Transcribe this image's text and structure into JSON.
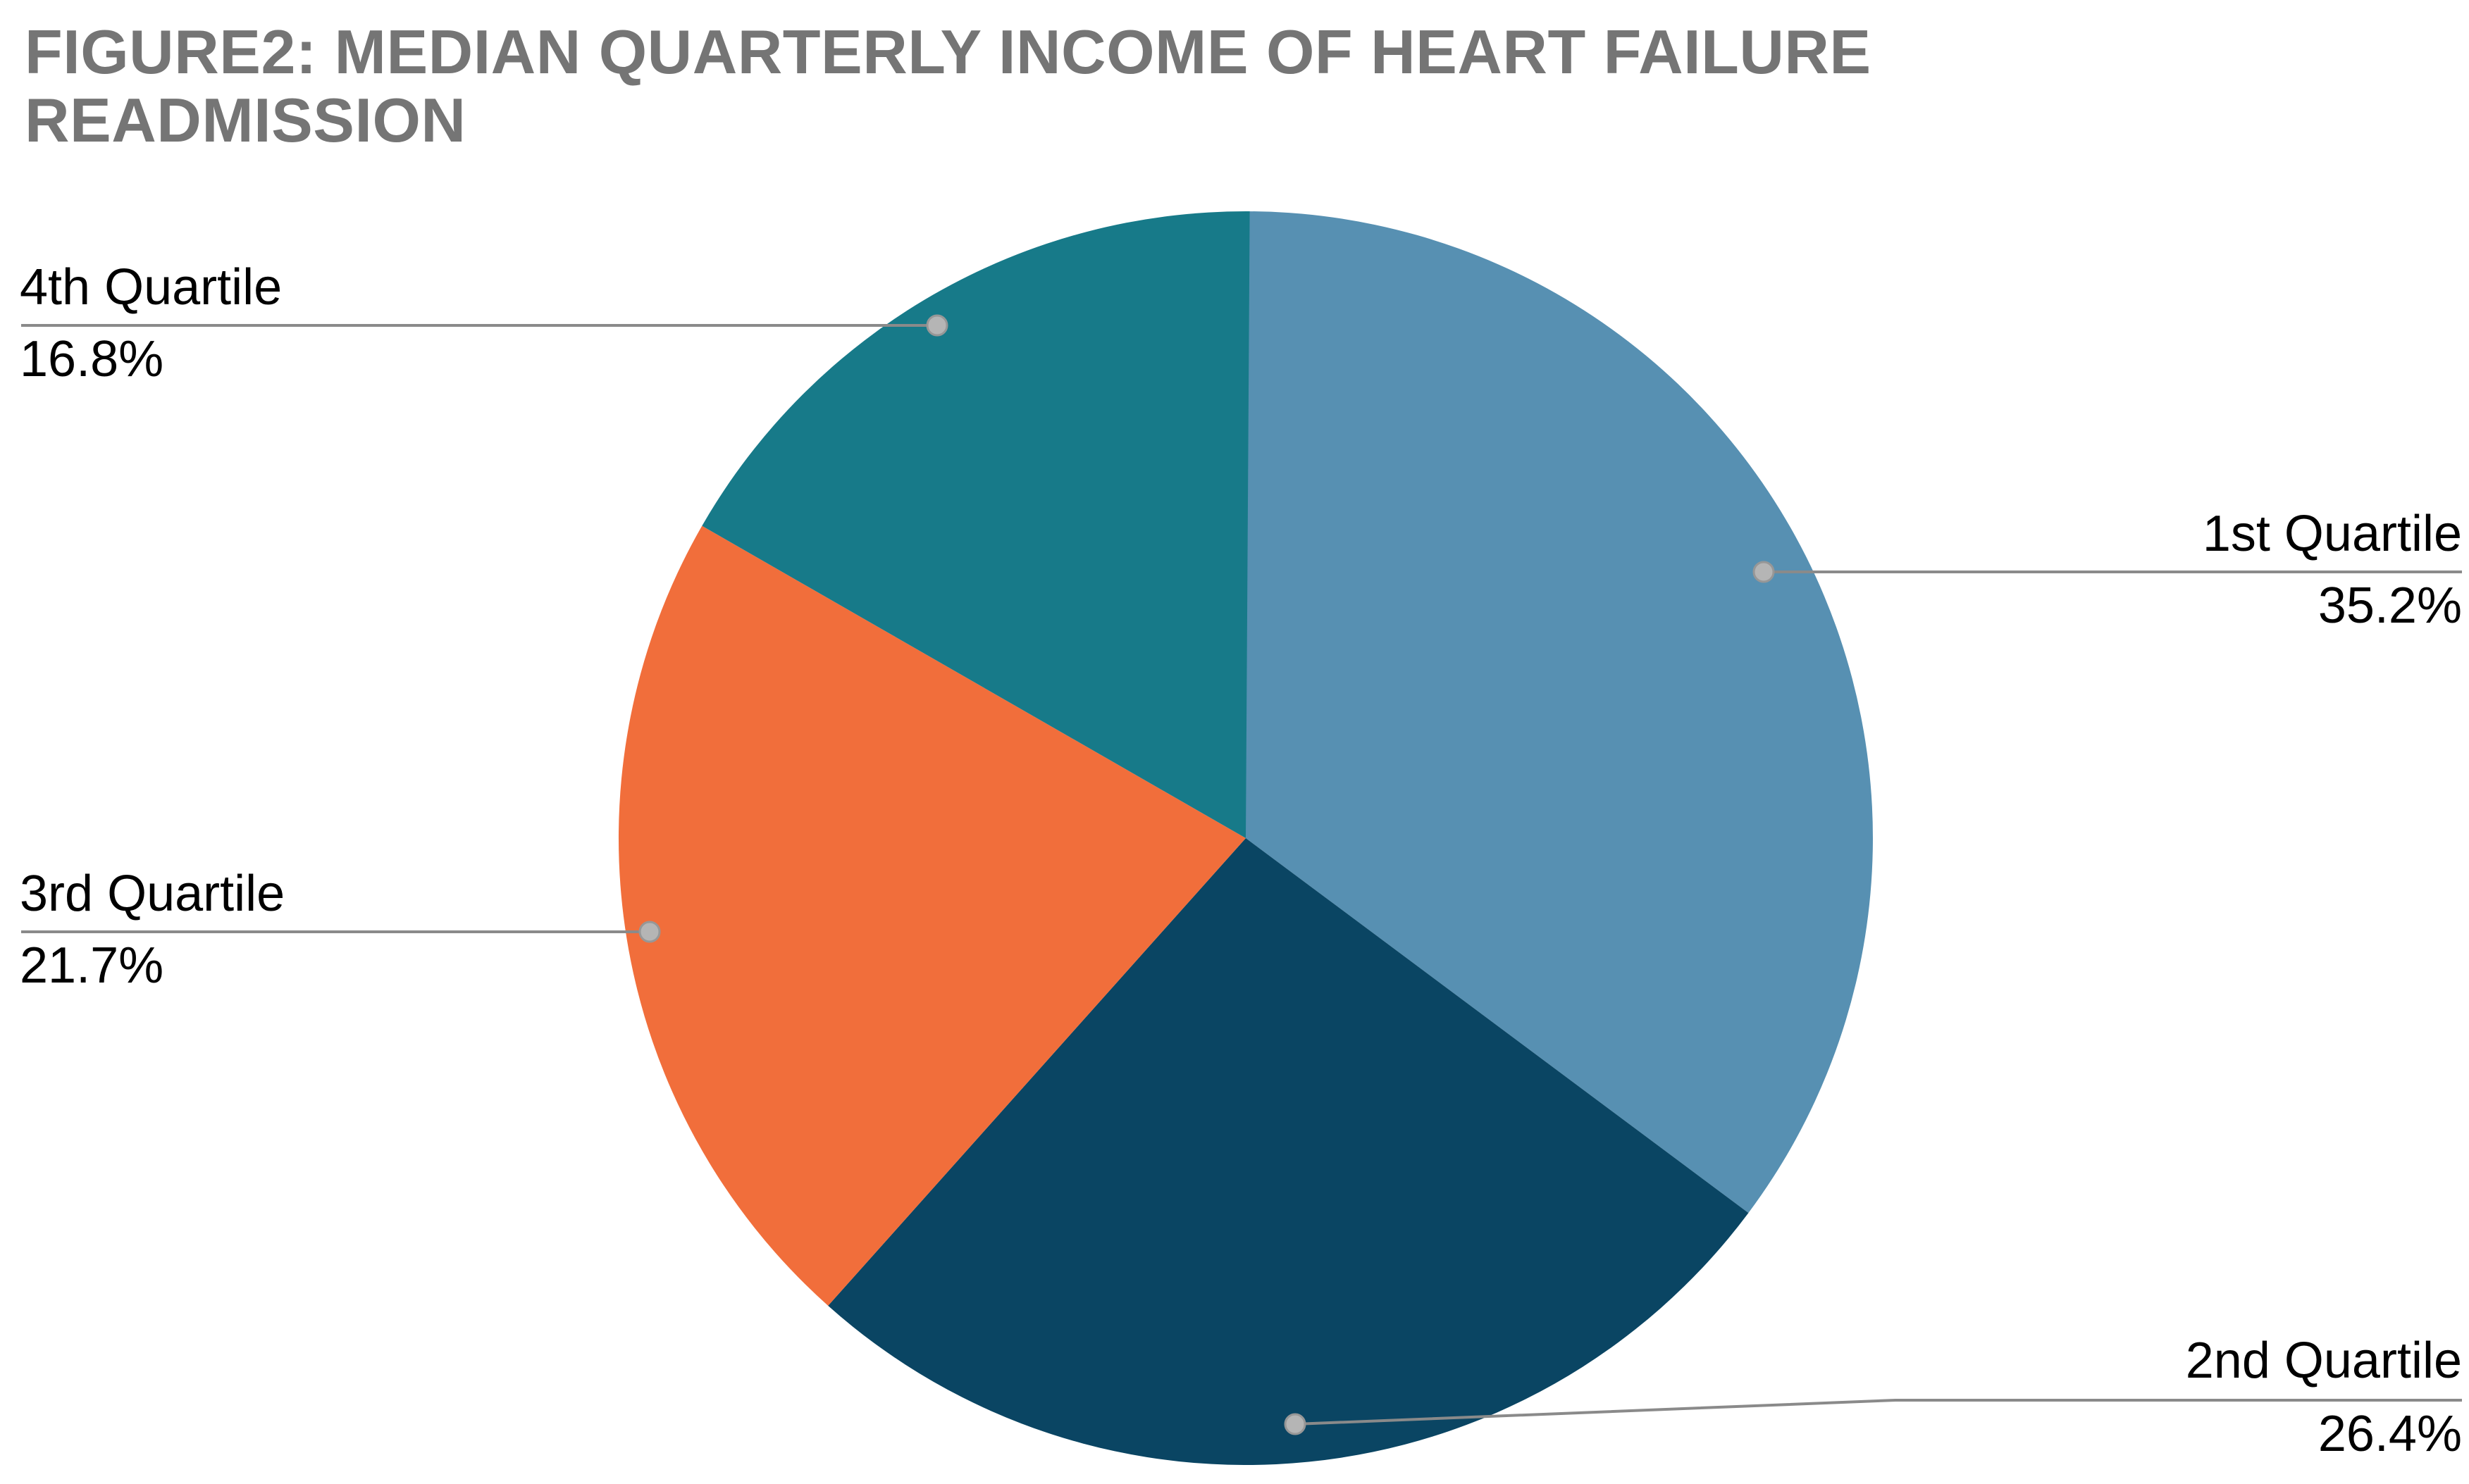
{
  "page": {
    "background_color": "#ffffff"
  },
  "chart_data": {
    "type": "pie",
    "title": "FIGURE2: MEDIAN QUARTERLY INCOME OF HEART FAILURE READMISSION",
    "title_color": "#757575",
    "legend": "none",
    "label_style": "outside labels with gray leader lines and anchor dots",
    "start_angle_deg": 0,
    "direction": "clockwise",
    "slices": [
      {
        "label": "1st Quartile",
        "value_pct": 35.2,
        "display": "35.2%",
        "color": "#5790b2"
      },
      {
        "label": "2nd Quartile",
        "value_pct": 26.4,
        "display": "26.4%",
        "color": "#0a4563"
      },
      {
        "label": "3rd Quartile",
        "value_pct": 21.7,
        "display": "21.7%",
        "color": "#f16e3b"
      },
      {
        "label": "4th Quartile",
        "value_pct": 16.8,
        "display": "16.8%",
        "color": "#177a89"
      }
    ],
    "slice_label_text_color": "#212121",
    "percent_text_color": "#9e9e9e",
    "leader_line_color": "#8a8a8a",
    "leader_dot_color": "#b5b5b5"
  }
}
